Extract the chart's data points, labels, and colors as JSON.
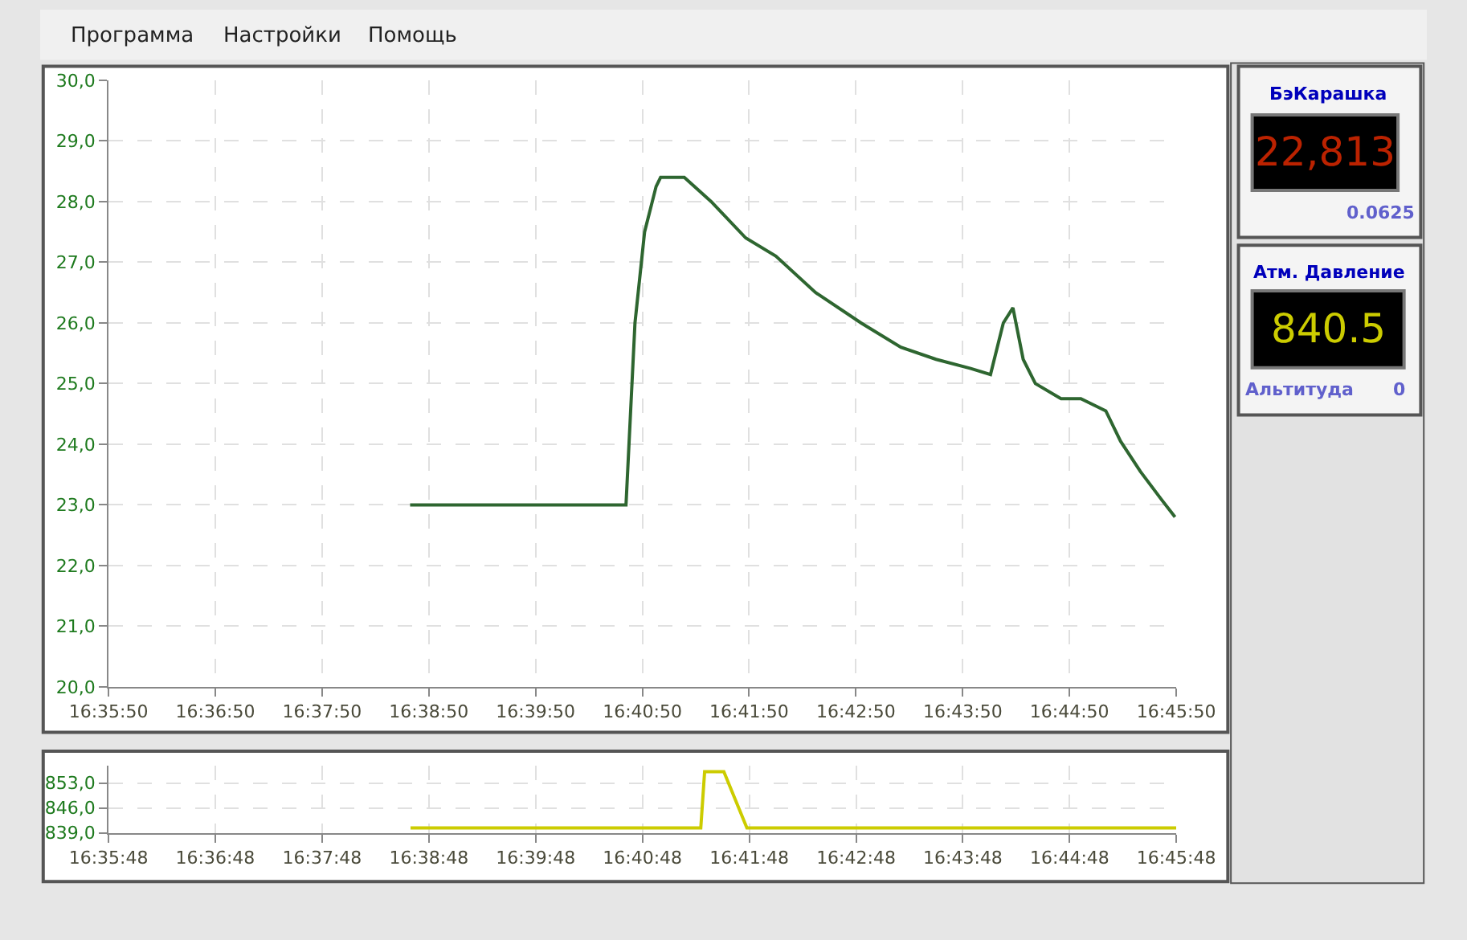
{
  "chart_data": [
    {
      "type": "line",
      "x": [
        16.6443,
        16.678,
        16.6794,
        16.6809,
        16.6827,
        16.6834,
        16.6871,
        16.6913,
        16.6967,
        16.7014,
        16.7076,
        16.7147,
        16.7209,
        16.7264,
        16.7318,
        16.7349,
        16.7369,
        16.7384,
        16.74,
        16.7419,
        16.7459,
        16.749,
        16.7529,
        16.7552,
        16.7583,
        16.7615,
        16.7637
      ],
      "series": [
        {
          "color": "#2e6630",
          "values": [
            23.0,
            23.0,
            26.0,
            27.5,
            28.25,
            28.4,
            28.4,
            28.0,
            27.4,
            27.1,
            26.5,
            26.0,
            25.6,
            25.4,
            25.25,
            25.15,
            26.0,
            26.25,
            25.4,
            25.0,
            24.75,
            24.75,
            24.55,
            24.05,
            23.55,
            23.1,
            22.8
          ]
        }
      ],
      "xlim": [
        16.59722,
        16.76389
      ],
      "xticks": [
        {
          "value": 16.59722,
          "label": "16:35:50"
        },
        {
          "value": 16.61389,
          "label": "16:36:50"
        },
        {
          "value": 16.63056,
          "label": "16:37:50"
        },
        {
          "value": 16.64722,
          "label": "16:38:50"
        },
        {
          "value": 16.66389,
          "label": "16:39:50"
        },
        {
          "value": 16.68056,
          "label": "16:40:50"
        },
        {
          "value": 16.69722,
          "label": "16:41:50"
        },
        {
          "value": 16.71389,
          "label": "16:42:50"
        },
        {
          "value": 16.73056,
          "label": "16:43:50"
        },
        {
          "value": 16.74722,
          "label": "16:44:50"
        },
        {
          "value": 16.76389,
          "label": "16:45:50"
        }
      ],
      "ylim": [
        20,
        30
      ],
      "yticks": [
        {
          "value": 20,
          "label": "20,0"
        },
        {
          "value": 21,
          "label": "21,0"
        },
        {
          "value": 22,
          "label": "22,0"
        },
        {
          "value": 23,
          "label": "23,0"
        },
        {
          "value": 24,
          "label": "24,0"
        },
        {
          "value": 25,
          "label": "25,0"
        },
        {
          "value": 26,
          "label": "26,0"
        },
        {
          "value": 27,
          "label": "27,0"
        },
        {
          "value": 28,
          "label": "28,0"
        },
        {
          "value": 29,
          "label": "29,0"
        },
        {
          "value": 30,
          "label": "30,0"
        }
      ],
      "grid": true,
      "marker": "none",
      "line_style": "solid"
    },
    {
      "type": "line",
      "x": [
        16.6438,
        16.6891,
        16.6897,
        16.6927,
        16.6963,
        16.7633
      ],
      "series": [
        {
          "color": "#cccc00",
          "values": [
            840.4,
            840.4,
            856.2,
            856.2,
            840.4,
            840.4
          ]
        }
      ],
      "xlim": [
        16.59667,
        16.7633
      ],
      "xticks": [
        {
          "value": 16.59667,
          "label": "16:35:48"
        },
        {
          "value": 16.61333,
          "label": "16:36:48"
        },
        {
          "value": 16.63,
          "label": "16:37:48"
        },
        {
          "value": 16.64667,
          "label": "16:38:48"
        },
        {
          "value": 16.66333,
          "label": "16:39:48"
        },
        {
          "value": 16.68,
          "label": "16:40:48"
        },
        {
          "value": 16.69667,
          "label": "16:41:48"
        },
        {
          "value": 16.71333,
          "label": "16:42:48"
        },
        {
          "value": 16.73,
          "label": "16:43:48"
        },
        {
          "value": 16.74667,
          "label": "16:44:48"
        },
        {
          "value": 16.7633,
          "label": "16:45:48"
        }
      ],
      "ylim": [
        839,
        858
      ],
      "yticks": [
        {
          "value": 839,
          "label": "839,0"
        },
        {
          "value": 846,
          "label": "846,0"
        },
        {
          "value": 853,
          "label": "853,0"
        }
      ],
      "grid": true,
      "marker": "none",
      "line_style": "solid"
    },
    {
      "type": "other",
      "annotations": [
        "Программа",
        "Настройки",
        "Помощь",
        "БэКарашка",
        "22,813",
        "0.0625",
        "Атм. Давление",
        "840.5",
        "Альтитуда",
        "0"
      ]
    }
  ]
}
